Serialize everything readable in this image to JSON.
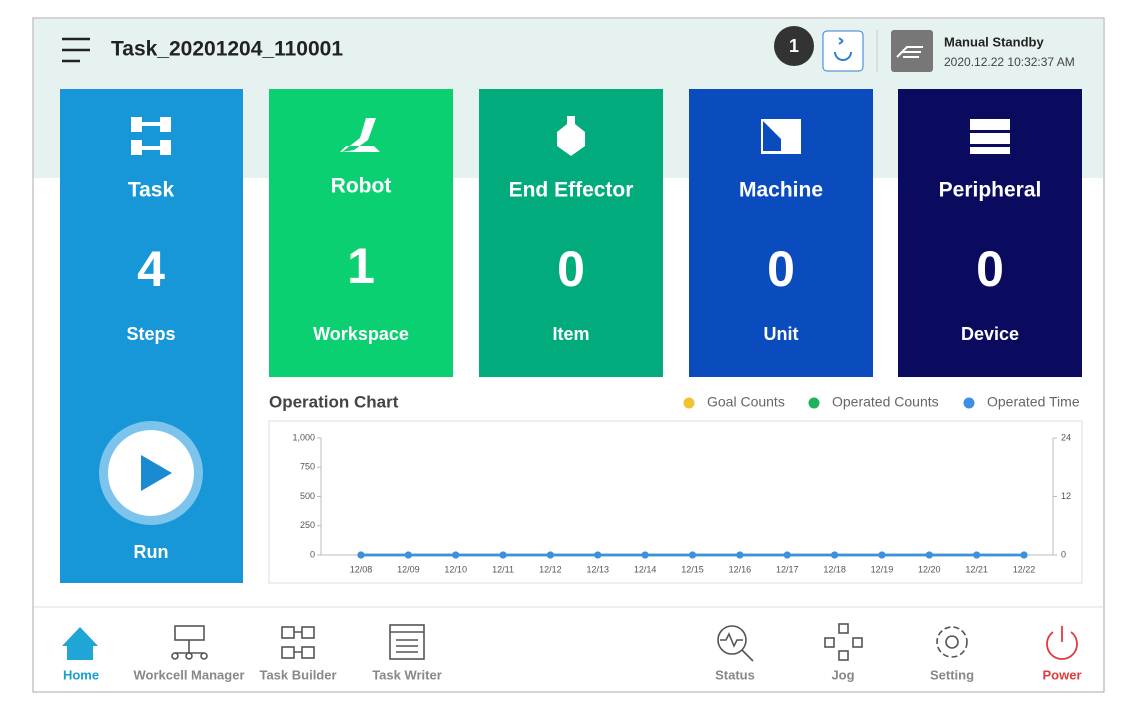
{
  "header": {
    "title": "Task_20201204_110001",
    "badge": 1,
    "status": "Manual Standby",
    "timestamp": "2020.12.22 10:32:37 AM"
  },
  "cards": [
    {
      "label": "Task",
      "count": 4,
      "unit": "Steps"
    },
    {
      "label": "Robot",
      "count": 1,
      "unit": "Workspace"
    },
    {
      "label": "End Effector",
      "count": 0,
      "unit": "Item"
    },
    {
      "label": "Machine",
      "count": 0,
      "unit": "Unit"
    },
    {
      "label": "Peripheral",
      "count": 0,
      "unit": "Device"
    }
  ],
  "run_label": "Run",
  "chart_data": {
    "type": "line",
    "title": "Operation Chart",
    "categories": [
      "12/08",
      "12/09",
      "12/10",
      "12/11",
      "12/12",
      "12/13",
      "12/14",
      "12/15",
      "12/16",
      "12/17",
      "12/18",
      "12/19",
      "12/20",
      "12/21",
      "12/22"
    ],
    "series": [
      {
        "name": "Goal Counts",
        "color": "#f2c230",
        "values": [
          0,
          0,
          0,
          0,
          0,
          0,
          0,
          0,
          0,
          0,
          0,
          0,
          0,
          0,
          0
        ]
      },
      {
        "name": "Operated Counts",
        "color": "#1fb25a",
        "values": [
          0,
          0,
          0,
          0,
          0,
          0,
          0,
          0,
          0,
          0,
          0,
          0,
          0,
          0,
          0
        ]
      },
      {
        "name": "Operated Time",
        "color": "#3d8fe6",
        "axis": "y2",
        "values": [
          0,
          0,
          0,
          0,
          0,
          0,
          0,
          0,
          0,
          0,
          0,
          0,
          0,
          0,
          0
        ]
      }
    ],
    "ylim": [
      0,
      1000
    ],
    "yticks": [
      0,
      250,
      500,
      750,
      {
        "value": 1000,
        "label": "1,000"
      }
    ],
    "y2lim": [
      0,
      24
    ],
    "y2ticks": [
      0,
      12,
      24
    ]
  },
  "nav": [
    {
      "label": "Home"
    },
    {
      "label": "Workcell Manager"
    },
    {
      "label": "Task Builder"
    },
    {
      "label": "Task Writer"
    },
    {
      "label": "Status"
    },
    {
      "label": "Jog"
    },
    {
      "label": "Setting"
    },
    {
      "label": "Power"
    }
  ]
}
